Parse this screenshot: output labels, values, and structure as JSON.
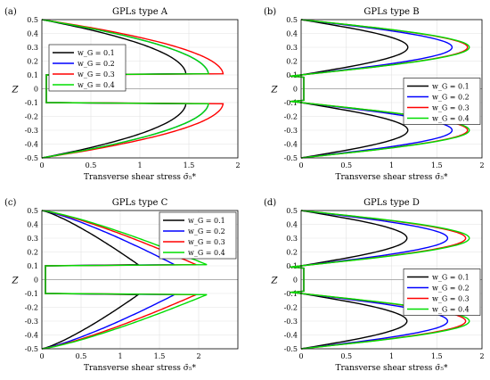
{
  "chart_data": [
    {
      "type": "line",
      "panel_label": "(a)",
      "title": "GPLs type A",
      "xlabel": "Transverse shear stress σ̄₅*",
      "ylabel": "Z",
      "xlim": [
        0,
        2
      ],
      "ylim": [
        -0.5,
        0.5
      ],
      "xticks": [
        "0",
        "0.5",
        "1",
        "1.5",
        "2"
      ],
      "yticks": [
        "0.5",
        "0.4",
        "0.3",
        "0.2",
        "0.1",
        "0",
        "-0.1",
        "-0.2",
        "-0.3",
        "-0.4",
        "-0.5"
      ],
      "grid": true,
      "legend_position": "top-left",
      "shape": "type-a",
      "series": [
        {
          "name": "w_G = 0.1",
          "color": "#000000",
          "peak": 1.47,
          "core": 0.045
        },
        {
          "name": "w_G = 0.2",
          "color": "#0000ff",
          "peak": 1.7,
          "core": 0.045
        },
        {
          "name": "w_G = 0.3",
          "color": "#ff0000",
          "peak": 1.85,
          "core": 0.045
        },
        {
          "name": "w_G = 0.4",
          "color": "#00dd00",
          "peak": 1.7,
          "core": 0.045
        }
      ]
    },
    {
      "type": "line",
      "panel_label": "(b)",
      "title": "GPLs type B",
      "xlabel": "Transverse shear stress σ̄₅*",
      "ylabel": "Z",
      "xlim": [
        0,
        2
      ],
      "ylim": [
        -0.5,
        0.5
      ],
      "xticks": [
        "0",
        "0.5",
        "1",
        "1.5",
        "2"
      ],
      "yticks": [
        "0.5",
        "0.4",
        "0.3",
        "0.2",
        "0.1",
        "0",
        "-0.1",
        "-0.2",
        "-0.3",
        "-0.4",
        "-0.5"
      ],
      "grid": true,
      "legend_position": "right-center",
      "shape": "type-b",
      "series": [
        {
          "name": "w_G = 0.1",
          "color": "#000000",
          "peak": 1.18,
          "core": 0.03
        },
        {
          "name": "w_G = 0.2",
          "color": "#0000ff",
          "peak": 1.67,
          "core": 0.03
        },
        {
          "name": "w_G = 0.3",
          "color": "#ff0000",
          "peak": 1.84,
          "core": 0.03
        },
        {
          "name": "w_G = 0.4",
          "color": "#00dd00",
          "peak": 1.86,
          "core": 0.03
        }
      ]
    },
    {
      "type": "line",
      "panel_label": "(c)",
      "title": "GPLs type C",
      "xlabel": "Transverse shear stress σ̄₅*",
      "ylabel": "Z",
      "xlim": [
        0,
        2.5
      ],
      "ylim": [
        -0.5,
        0.5
      ],
      "xticks": [
        "0",
        "0.5",
        "1",
        "1.5",
        "2"
      ],
      "yticks": [
        "0.5",
        "0.4",
        "0.3",
        "0.2",
        "0.1",
        "0",
        "-0.1",
        "-0.2",
        "-0.3",
        "-0.4",
        "-0.5"
      ],
      "grid": true,
      "legend_position": "top-right",
      "shape": "type-c",
      "series": [
        {
          "name": "w_G = 0.1",
          "color": "#000000",
          "peak": 1.25,
          "core": 0.045
        },
        {
          "name": "w_G = 0.2",
          "color": "#0000ff",
          "peak": 1.72,
          "core": 0.045
        },
        {
          "name": "w_G = 0.3",
          "color": "#ff0000",
          "peak": 2.0,
          "core": 0.045
        },
        {
          "name": "w_G = 0.4",
          "color": "#00dd00",
          "peak": 2.14,
          "core": 0.045
        }
      ]
    },
    {
      "type": "line",
      "panel_label": "(d)",
      "title": "GPLs type D",
      "xlabel": "Transverse shear stress σ̄₅*",
      "ylabel": "Z",
      "xlim": [
        0,
        2
      ],
      "ylim": [
        -0.5,
        0.5
      ],
      "xticks": [
        "0",
        "0.5",
        "1",
        "1.5",
        "2"
      ],
      "yticks": [
        "0.5",
        "0.4",
        "0.3",
        "0.2",
        "0.1",
        "0",
        "-0.1",
        "-0.2",
        "-0.3",
        "-0.4",
        "-0.5"
      ],
      "grid": true,
      "legend_position": "right-center",
      "shape": "type-d",
      "series": [
        {
          "name": "w_G = 0.1",
          "color": "#000000",
          "peak": 1.17,
          "core": 0.03
        },
        {
          "name": "w_G = 0.2",
          "color": "#0000ff",
          "peak": 1.62,
          "core": 0.03
        },
        {
          "name": "w_G = 0.3",
          "color": "#ff0000",
          "peak": 1.82,
          "core": 0.03
        },
        {
          "name": "w_G = 0.4",
          "color": "#00dd00",
          "peak": 1.86,
          "core": 0.03
        }
      ]
    }
  ]
}
